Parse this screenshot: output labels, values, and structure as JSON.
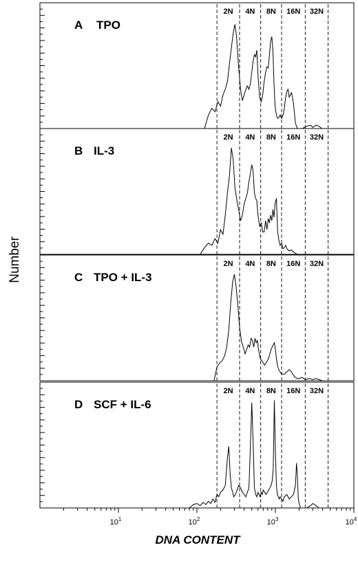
{
  "chart_data": {
    "type": "line",
    "xlabel": "DNA CONTENT",
    "ylabel": "Number",
    "x_scale": "log",
    "xlim": [
      1,
      10000
    ],
    "x_ticks": [
      {
        "value": 10,
        "base": "10",
        "exp": "1"
      },
      {
        "value": 100,
        "base": "10",
        "exp": "2"
      },
      {
        "value": 1000,
        "base": "10",
        "exp": "3"
      },
      {
        "value": 10000,
        "base": "10",
        "exp": "4"
      }
    ],
    "gates": [
      {
        "label": "2N",
        "left": 180,
        "right": 350
      },
      {
        "label": "4N",
        "left": 350,
        "right": 650
      },
      {
        "label": "8N",
        "left": 650,
        "right": 1200
      },
      {
        "label": "16N",
        "left": 1200,
        "right": 2400
      },
      {
        "label": "32N",
        "left": 2400,
        "right": 4700
      }
    ],
    "panels": [
      {
        "letter": "A",
        "condition": "TPO",
        "x": [
          125,
          140,
          155,
          170,
          185,
          200,
          215,
          230,
          245,
          260,
          275,
          290,
          305,
          320,
          340,
          360,
          380,
          400,
          420,
          440,
          460,
          480,
          500,
          520,
          540,
          560,
          580,
          600,
          630,
          660,
          690,
          720,
          750,
          780,
          810,
          840,
          870,
          900,
          930,
          960,
          990,
          1030,
          1070,
          1110,
          1150,
          1200,
          1250,
          1300,
          1350,
          1400,
          1450,
          1500,
          1550,
          1600,
          1650,
          1700,
          1800,
          1900,
          2000,
          2100,
          2200,
          2500,
          2800,
          3000,
          3300,
          3600,
          3900
        ],
        "y": [
          0,
          12,
          18,
          15,
          24,
          20,
          30,
          35,
          42,
          58,
          72,
          85,
          93,
          82,
          55,
          35,
          25,
          30,
          35,
          38,
          35,
          40,
          50,
          60,
          66,
          64,
          70,
          48,
          28,
          24,
          30,
          42,
          50,
          55,
          54,
          66,
          78,
          82,
          70,
          40,
          20,
          12,
          9,
          10,
          12,
          9,
          12,
          18,
          28,
          33,
          35,
          28,
          30,
          32,
          28,
          22,
          5,
          0,
          0,
          0,
          0,
          2,
          3,
          1,
          3,
          2,
          0
        ]
      },
      {
        "letter": "B",
        "condition": "IL-3",
        "x": [
          110,
          125,
          140,
          155,
          170,
          185,
          200,
          215,
          230,
          245,
          260,
          275,
          290,
          305,
          320,
          340,
          360,
          380,
          400,
          420,
          440,
          460,
          480,
          500,
          520,
          540,
          560,
          580,
          600,
          630,
          660,
          690,
          720,
          750,
          780,
          810,
          840,
          870,
          900,
          930,
          960,
          990,
          1030,
          1070,
          1110,
          1150,
          1200,
          1250,
          1300,
          1350,
          1400,
          1500,
          1600,
          1700,
          1900
        ],
        "y": [
          0,
          6,
          10,
          8,
          14,
          10,
          22,
          18,
          35,
          55,
          70,
          95,
          85,
          60,
          50,
          40,
          30,
          35,
          45,
          50,
          55,
          65,
          72,
          80,
          75,
          55,
          50,
          48,
          35,
          25,
          28,
          20,
          20,
          30,
          22,
          32,
          28,
          35,
          30,
          40,
          33,
          45,
          50,
          20,
          12,
          8,
          10,
          5,
          6,
          8,
          5,
          3,
          4,
          2,
          0
        ]
      },
      {
        "letter": "C",
        "condition": "TPO + IL-3",
        "x": [
          165,
          180,
          195,
          210,
          225,
          240,
          255,
          270,
          285,
          300,
          315,
          330,
          350,
          370,
          390,
          410,
          430,
          450,
          470,
          490,
          510,
          530,
          550,
          570,
          590,
          610,
          640,
          670,
          700,
          730,
          760,
          790,
          820,
          850,
          880,
          910,
          940,
          970,
          1000,
          1030,
          1060,
          1100,
          1150,
          1200,
          1300,
          1400,
          1500,
          1600,
          1700,
          1800,
          1900,
          2000,
          2200,
          2400,
          2700,
          3000,
          3300,
          3600,
          4000
        ],
        "y": [
          0,
          12,
          16,
          18,
          22,
          30,
          45,
          70,
          88,
          95,
          85,
          70,
          48,
          35,
          30,
          24,
          28,
          32,
          30,
          38,
          36,
          30,
          38,
          34,
          36,
          28,
          20,
          18,
          16,
          14,
          16,
          18,
          20,
          24,
          28,
          30,
          32,
          34,
          28,
          20,
          14,
          10,
          8,
          6,
          6,
          8,
          10,
          8,
          5,
          3,
          2,
          2,
          3,
          1,
          2,
          1,
          2,
          1,
          0
        ]
      },
      {
        "letter": "D",
        "condition": "SCF + IL-6",
        "x": [
          80,
          90,
          100,
          110,
          120,
          130,
          140,
          150,
          160,
          170,
          180,
          190,
          200,
          215,
          230,
          245,
          255,
          265,
          275,
          285,
          295,
          310,
          325,
          340,
          360,
          380,
          400,
          420,
          440,
          460,
          480,
          500,
          520,
          540,
          560,
          580,
          600,
          620,
          640,
          660,
          680,
          700,
          730,
          760,
          790,
          820,
          850,
          880,
          910,
          940,
          970,
          1000,
          1030,
          1060,
          1090,
          1120,
          1150,
          1200,
          1250,
          1300,
          1400,
          1500,
          1600,
          1700,
          1800,
          1860,
          1900,
          1960,
          2020,
          2100,
          2300,
          2500,
          2800,
          3000,
          3300,
          3600,
          3900
        ],
        "y": [
          0,
          3,
          4,
          2,
          5,
          3,
          6,
          4,
          8,
          5,
          12,
          10,
          14,
          16,
          20,
          45,
          55,
          30,
          18,
          14,
          10,
          12,
          16,
          20,
          18,
          14,
          12,
          10,
          14,
          18,
          55,
          94,
          60,
          18,
          12,
          10,
          14,
          12,
          10,
          14,
          12,
          16,
          14,
          12,
          14,
          16,
          18,
          20,
          24,
          35,
          96,
          50,
          20,
          12,
          10,
          8,
          10,
          8,
          6,
          10,
          12,
          8,
          10,
          12,
          20,
          40,
          30,
          8,
          3,
          0,
          0,
          0,
          2,
          4,
          2,
          0,
          0
        ]
      }
    ]
  }
}
